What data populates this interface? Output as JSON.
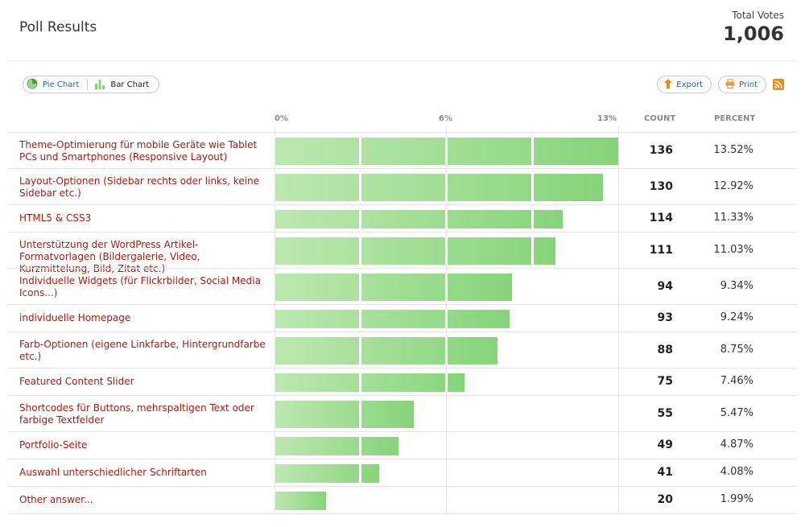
{
  "header": {
    "title": "Poll Results",
    "total_label": "Total Votes",
    "total_value": "1,006"
  },
  "view_toggle": {
    "pie_label": "Pie Chart",
    "bar_label": "Bar Chart",
    "selected": "Bar Chart"
  },
  "actions": {
    "export_label": "Export",
    "print_label": "Print"
  },
  "columns": {
    "tick_0": "0%",
    "tick_1": "6%",
    "tick_2": "13%",
    "count": "COUNT",
    "percent": "PERCENT"
  },
  "colors": {
    "answer_text": "#a81c10",
    "bar_start": "#bce8b0",
    "bar_end": "#86d47a",
    "rss": "#f0891e"
  },
  "chart_data": {
    "type": "bar",
    "xlim": [
      0,
      13.52
    ],
    "categories": [
      "Theme-Optimierung für mobile Geräte wie Tablet PCs und Smartphones (Responsive Layout)",
      "Layout-Optionen (Sidebar rechts oder links, keine Sidebar etc.)",
      "HTML5 & CSS3",
      "Unterstützung der WordPress Artikel-Formatvorlagen (Bildergalerie, Video, Kurzmittelung, Bild, Zitat etc.)",
      "Individuelle Widgets (für Flickrbilder, Social Media Icons...)",
      "individuelle Homepage",
      "Farb-Optionen (eigene Linkfarbe, Hintergrundfarbe etc.)",
      "Featured Content Slider",
      "Shortcodes für Buttons, mehrspaltigen Text oder farbige Textfelder",
      "Portfolio-Seite",
      "Auswahl unterschiedlicher Schriftarten",
      "Other answer..."
    ],
    "counts": [
      "136",
      "130",
      "114",
      "111",
      "94",
      "93",
      "88",
      "75",
      "55",
      "49",
      "41",
      "20"
    ],
    "percents": [
      "13.52%",
      "12.92%",
      "11.33%",
      "11.03%",
      "9.34%",
      "9.24%",
      "8.75%",
      "7.46%",
      "5.47%",
      "4.87%",
      "4.08%",
      "1.99%"
    ],
    "values": [
      13.52,
      12.92,
      11.33,
      11.03,
      9.34,
      9.24,
      8.75,
      7.46,
      5.47,
      4.87,
      4.08,
      1.99
    ]
  }
}
